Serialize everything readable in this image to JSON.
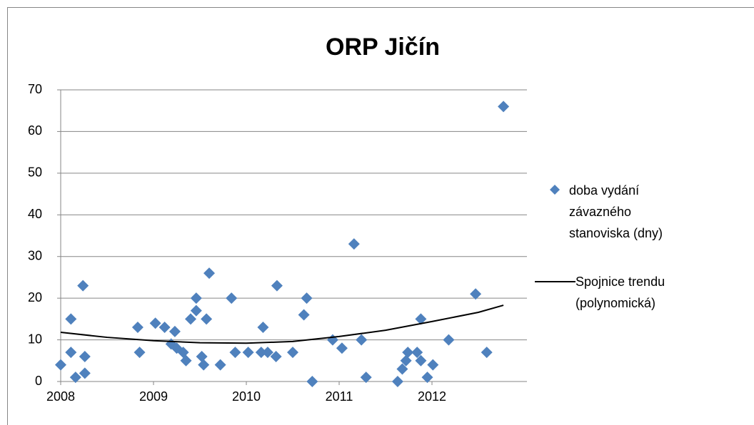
{
  "chart_data": {
    "type": "scatter",
    "title": "ORP Jičín",
    "xlim": [
      2008,
      2013
    ],
    "xticks": [
      2008,
      2009,
      2010,
      2011,
      2012
    ],
    "ylim": [
      0,
      70
    ],
    "yticks": [
      0,
      10,
      20,
      30,
      40,
      50,
      60,
      70
    ],
    "grid": true,
    "legend": "right",
    "series": [
      {
        "name": "doba vydání závazného stanoviska (dny)",
        "color": "#4f81bd",
        "marker": "diamond",
        "x": [
          2008.0,
          2008.11,
          2008.11,
          2008.16,
          2008.24,
          2008.26,
          2008.26,
          2008.83,
          2008.85,
          2009.02,
          2009.12,
          2009.19,
          2009.23,
          2009.25,
          2009.32,
          2009.35,
          2009.4,
          2009.46,
          2009.46,
          2009.52,
          2009.54,
          2009.57,
          2009.6,
          2009.72,
          2009.84,
          2009.88,
          2010.02,
          2010.16,
          2010.18,
          2010.23,
          2010.32,
          2010.33,
          2010.5,
          2010.62,
          2010.65,
          2010.71,
          2010.93,
          2011.03,
          2011.16,
          2011.24,
          2011.29,
          2011.63,
          2011.68,
          2011.72,
          2011.74,
          2011.84,
          2011.88,
          2011.88,
          2011.95,
          2012.01,
          2012.18,
          2012.47,
          2012.59,
          2012.77
        ],
        "values": [
          4,
          7,
          15,
          1,
          23,
          6,
          2,
          13,
          7,
          14,
          13,
          9,
          12,
          8,
          7,
          5,
          15,
          20,
          17,
          6,
          4,
          15,
          26,
          4,
          20,
          7,
          7,
          7,
          13,
          7,
          6,
          23,
          7,
          16,
          20,
          0,
          10,
          8,
          33,
          10,
          1,
          0,
          3,
          5,
          7,
          7,
          15,
          5,
          1,
          4,
          10,
          21,
          7,
          66
        ]
      },
      {
        "name": "Spojnice trendu (polynomická)",
        "color": "#000000",
        "marker": "line",
        "x": [
          2008.0,
          2008.5,
          2009.0,
          2009.5,
          2010.0,
          2010.5,
          2011.0,
          2011.5,
          2012.0,
          2012.5,
          2012.77
        ],
        "values": [
          11.8,
          10.6,
          9.8,
          9.3,
          9.2,
          9.6,
          10.8,
          12.3,
          14.4,
          16.6,
          18.3
        ]
      }
    ]
  }
}
